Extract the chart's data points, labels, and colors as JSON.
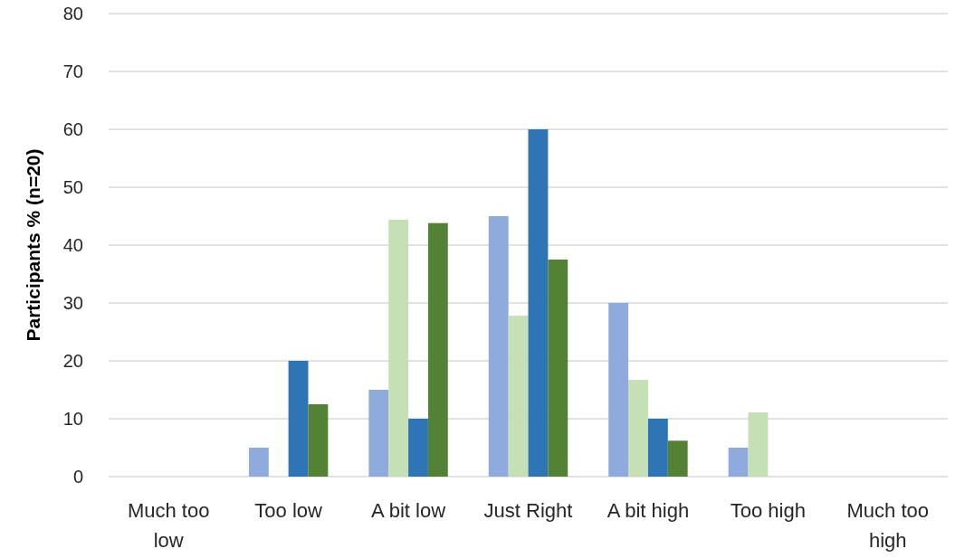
{
  "chart_data": {
    "type": "bar",
    "ylabel": "Participants % (n=20)",
    "categories": [
      "Much too low",
      "Too low",
      "A bit low",
      "Just Right",
      "A bit high",
      "Too high",
      "Much too high"
    ],
    "series": [
      {
        "color": "#8faadc",
        "values": [
          0,
          5,
          15,
          45,
          30,
          5,
          0
        ]
      },
      {
        "color": "#c5e0b4",
        "values": [
          0,
          0,
          44.4,
          27.8,
          16.7,
          11.1,
          0
        ]
      },
      {
        "color": "#2e75b6",
        "values": [
          0,
          20,
          10,
          60,
          10,
          0,
          0
        ]
      },
      {
        "color": "#548235",
        "values": [
          0,
          12.5,
          43.8,
          37.5,
          6.2,
          0,
          0
        ]
      }
    ],
    "ylim": [
      0,
      80
    ],
    "yticks": [
      0,
      10,
      20,
      30,
      40,
      50,
      60,
      70,
      80
    ],
    "grid": true
  }
}
